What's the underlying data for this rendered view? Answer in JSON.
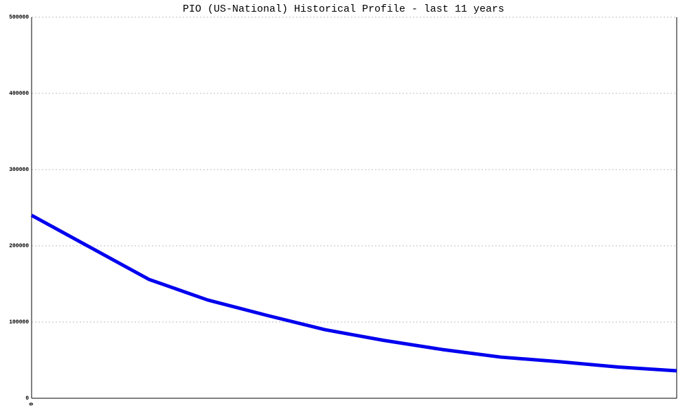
{
  "chart_data": {
    "type": "line",
    "title": "PIO (US-National) Historical Profile - last 11 years",
    "categories": [
      "0",
      null,
      null,
      null,
      null,
      null,
      null,
      null,
      null,
      null,
      null,
      null
    ],
    "series": [
      {
        "name": "PIO",
        "color": "#0000ee",
        "values": [
          240000,
          198000,
          156000,
          129000,
          109000,
          90000,
          76000,
          64000,
          54000,
          48000,
          41000,
          36000
        ]
      }
    ],
    "ylim": [
      0,
      500000
    ],
    "yticks": [
      0,
      100000,
      200000,
      300000,
      400000,
      500000
    ],
    "grid": true
  }
}
